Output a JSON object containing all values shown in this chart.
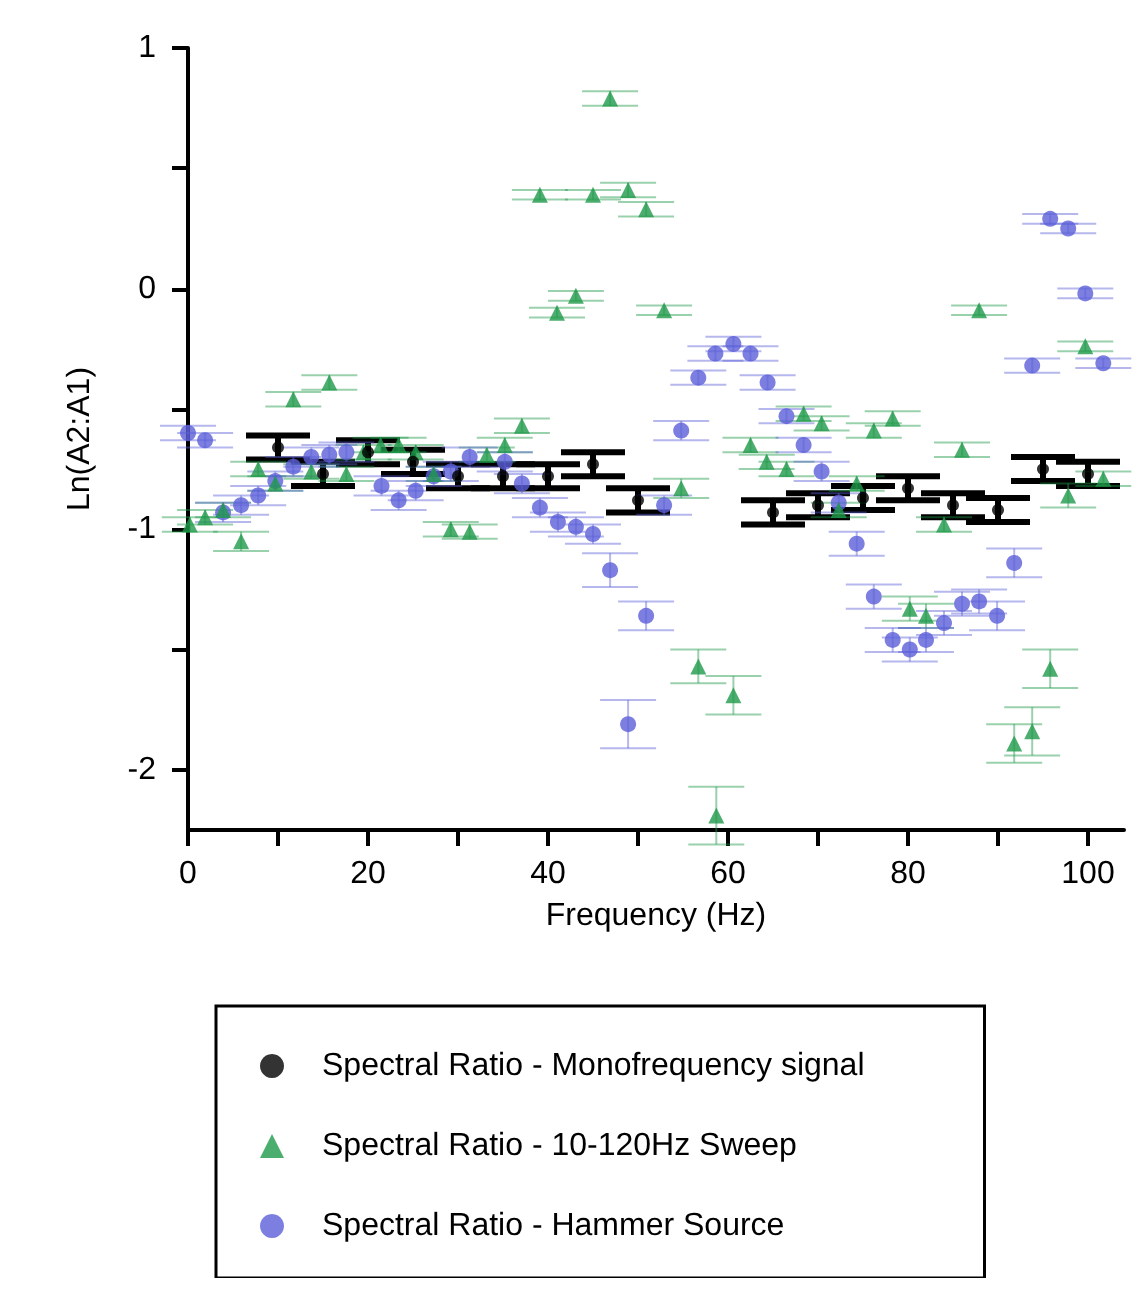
{
  "chart_data": {
    "type": "scatter",
    "xlabel": "Frequency (Hz)",
    "ylabel": "Ln(A2:A1)",
    "xlim": [
      0,
      104
    ],
    "xticks": [
      0,
      {
        "value": 10,
        "label": null
      },
      20,
      {
        "value": 30,
        "label": null
      },
      40,
      {
        "value": 50,
        "label": null
      },
      60,
      {
        "value": 70,
        "label": null
      },
      80,
      {
        "value": 90,
        "label": null
      },
      100
    ],
    "ylim": [
      -2.25,
      1
    ],
    "yticks": [
      -2,
      {
        "value": -1.5,
        "label": null
      },
      -1,
      {
        "value": -0.5,
        "label": null
      },
      0,
      {
        "value": 0.5,
        "label": null
      },
      1
    ],
    "grid": false,
    "legend": "bottom",
    "series": [
      {
        "name": "Spectral Ratio - Monofrequency signal",
        "color": "#000000",
        "marker": "circle",
        "x": [
          10,
          15,
          20,
          25,
          30,
          35,
          40,
          45,
          50,
          65,
          70,
          75,
          80,
          85,
          90,
          95,
          100
        ],
        "values": [
          -0.66,
          -0.77,
          -0.68,
          -0.72,
          -0.78,
          -0.78,
          -0.78,
          -0.73,
          -0.88,
          -0.93,
          -0.9,
          -0.87,
          -0.83,
          -0.9,
          -0.92,
          -0.75,
          -0.77
        ],
        "errors": [
          0.05,
          0.05,
          0.05,
          0.05,
          0.05,
          0.05,
          0.05,
          0.05,
          0.05,
          0.05,
          0.05,
          0.05,
          0.05,
          0.05,
          0.05,
          0.05,
          0.05
        ]
      },
      {
        "name": "Spectral Ratio - 10-120Hz Sweep",
        "color": "#1f9a4a",
        "marker": "triangle",
        "x": [
          0.2,
          1.9,
          3.9,
          5.9,
          7.8,
          9.7,
          11.7,
          13.7,
          15.7,
          17.6,
          19.5,
          21.4,
          23.4,
          25.3,
          27.3,
          29.2,
          31.3,
          33.2,
          35.2,
          37.1,
          39.1,
          41,
          43.1,
          45,
          46.9,
          48.9,
          50.9,
          52.9,
          54.8,
          56.7,
          58.7,
          60.6,
          62.5,
          64.3,
          66.5,
          68.4,
          70.4,
          72.3,
          74.3,
          76.2,
          78.3,
          80.2,
          82,
          84,
          86,
          87.9,
          91.8,
          93.8,
          95.8,
          97.8,
          99.7,
          101.7
        ],
        "values": [
          -0.98,
          -0.95,
          -0.92,
          -1.05,
          -0.75,
          -0.81,
          -0.46,
          -0.76,
          -0.39,
          -0.77,
          -0.68,
          -0.65,
          -0.65,
          -0.68,
          -0.77,
          -1.0,
          -1.01,
          -0.69,
          -0.65,
          -0.57,
          0.39,
          -0.1,
          -0.03,
          0.39,
          0.79,
          0.41,
          0.33,
          -0.09,
          -0.83,
          -1.57,
          -2.19,
          -1.69,
          -0.65,
          -0.72,
          -0.75,
          -0.52,
          -0.56,
          -0.92,
          -0.81,
          -0.59,
          -0.54,
          -1.33,
          -1.36,
          -0.98,
          -0.67,
          -0.09,
          -1.89,
          -1.84,
          -1.58,
          -0.86,
          -0.24,
          -0.79
        ],
        "errors": [
          0.03,
          0.03,
          0.03,
          0.04,
          0.03,
          0.03,
          0.03,
          0.03,
          0.03,
          0.03,
          0.03,
          0.03,
          0.03,
          0.03,
          0.03,
          0.03,
          0.03,
          0.03,
          0.03,
          0.03,
          0.02,
          0.02,
          0.02,
          0.02,
          0.03,
          0.03,
          0.03,
          0.02,
          0.04,
          0.07,
          0.12,
          0.08,
          0.03,
          0.03,
          0.03,
          0.03,
          0.03,
          0.03,
          0.03,
          0.03,
          0.03,
          0.05,
          0.05,
          0.03,
          0.03,
          0.02,
          0.08,
          0.1,
          0.08,
          0.05,
          0.02,
          0.03
        ]
      },
      {
        "name": "Spectral Ratio - Hammer Source",
        "color": "#5b5fd8",
        "marker": "circle",
        "x": [
          0,
          1.9,
          3.9,
          5.9,
          7.8,
          9.7,
          11.7,
          13.7,
          15.7,
          17.6,
          21.5,
          23.4,
          25.3,
          27.3,
          29.2,
          31.3,
          35.2,
          37.1,
          39.1,
          41.1,
          43.1,
          45,
          46.9,
          48.9,
          50.9,
          52.9,
          54.8,
          56.7,
          58.6,
          60.6,
          62.5,
          64.4,
          66.5,
          68.4,
          70.4,
          72.3,
          74.3,
          76.2,
          78.3,
          80.2,
          82,
          84,
          86,
          87.9,
          89.9,
          91.8,
          93.8,
          95.8,
          97.8,
          99.7,
          101.7
        ],
        "values": [
          -0.6,
          -0.63,
          -0.93,
          -0.9,
          -0.86,
          -0.8,
          -0.74,
          -0.7,
          -0.69,
          -0.68,
          -0.82,
          -0.88,
          -0.84,
          -0.78,
          -0.76,
          -0.7,
          -0.72,
          -0.81,
          -0.91,
          -0.97,
          -0.99,
          -1.02,
          -1.17,
          -1.81,
          -1.36,
          -0.9,
          -0.59,
          -0.37,
          -0.27,
          -0.23,
          -0.27,
          -0.39,
          -0.53,
          -0.65,
          -0.76,
          -0.89,
          -1.06,
          -1.28,
          -1.46,
          -1.5,
          -1.46,
          -1.39,
          -1.31,
          -1.3,
          -1.36,
          -1.14,
          -0.32,
          0.29,
          0.25,
          -0.02,
          -0.31
        ],
        "errors": [
          0.03,
          0.03,
          0.04,
          0.04,
          0.04,
          0.04,
          0.04,
          0.04,
          0.04,
          0.04,
          0.04,
          0.04,
          0.04,
          0.04,
          0.04,
          0.04,
          0.04,
          0.04,
          0.04,
          0.04,
          0.04,
          0.04,
          0.07,
          0.1,
          0.06,
          0.04,
          0.04,
          0.03,
          0.03,
          0.03,
          0.03,
          0.03,
          0.03,
          0.03,
          0.04,
          0.04,
          0.05,
          0.05,
          0.05,
          0.05,
          0.05,
          0.05,
          0.05,
          0.05,
          0.06,
          0.06,
          0.03,
          0.02,
          0.02,
          0.02,
          0.02
        ]
      }
    ]
  }
}
